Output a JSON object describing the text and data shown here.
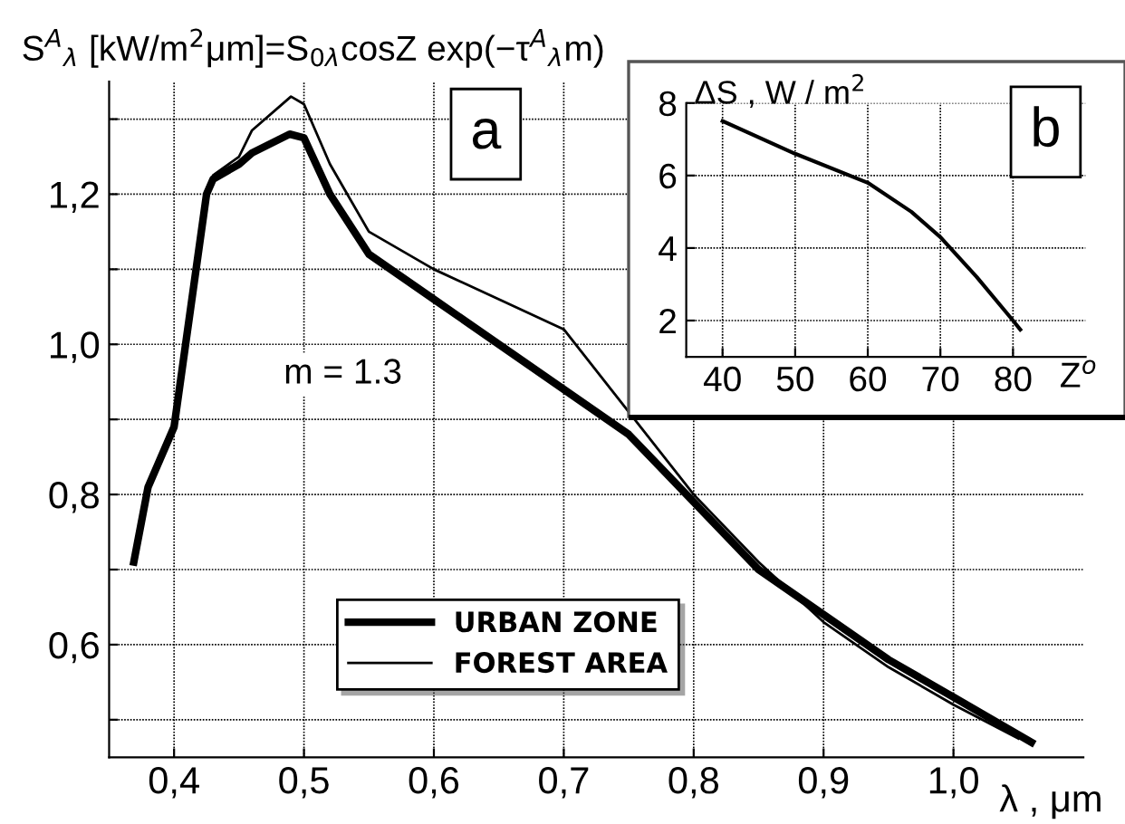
{
  "chart_data": [
    {
      "type": "line",
      "ylabel": "S$^{A}$$_{λ}$ [kW/m$^{2}$μm]=S$_{0λ}$cosZ exp(−τ$^{A}$$_{λ}$m)",
      "xlabel": "λ , μm",
      "annotations": [
        "a",
        "m = 1.3"
      ],
      "xlim": [
        0.35,
        1.1
      ],
      "ylim": [
        0.45,
        1.35
      ],
      "xticks": [
        {
          "value": 0.4,
          "label": "0,4"
        },
        {
          "value": 0.5,
          "label": "0,5"
        },
        {
          "value": 0.6,
          "label": "0,6"
        },
        {
          "value": 0.7,
          "label": "0,7"
        },
        {
          "value": 0.8,
          "label": "0,8"
        },
        {
          "value": 0.9,
          "label": "0,9"
        },
        {
          "value": 1.0,
          "label": "1,0"
        }
      ],
      "yticks": [
        {
          "value": 0.5,
          "label": null
        },
        {
          "value": 0.6,
          "label": "0,6"
        },
        {
          "value": 0.7,
          "label": null
        },
        {
          "value": 0.8,
          "label": "0,8"
        },
        {
          "value": 0.9,
          "label": null
        },
        {
          "value": 1.0,
          "label": "1,0"
        },
        {
          "value": 1.1,
          "label": null
        },
        {
          "value": 1.2,
          "label": "1,2"
        },
        {
          "value": 1.3,
          "label": null
        }
      ],
      "grid": true,
      "legend": "bottom left",
      "line_style": "solid",
      "marker": "none",
      "series": [
        {
          "name": "URBAN ZONE",
          "color": "#000000",
          "x": [
            0.369,
            0.38,
            0.4,
            0.425,
            0.43,
            0.45,
            0.46,
            0.489,
            0.5,
            0.52,
            0.55,
            0.6,
            0.65,
            0.7,
            0.75,
            0.8,
            0.85,
            0.9,
            0.95,
            1.0,
            1.06
          ],
          "values": [
            0.71,
            0.81,
            0.89,
            1.2,
            1.22,
            1.24,
            1.255,
            1.28,
            1.275,
            1.2,
            1.12,
            1.06,
            1.0,
            0.94,
            0.88,
            0.79,
            0.7,
            0.64,
            0.58,
            0.53,
            0.47
          ]
        },
        {
          "name": "FOREST AREA",
          "color": "#000000",
          "x": [
            0.4,
            0.425,
            0.43,
            0.45,
            0.46,
            0.49,
            0.5,
            0.52,
            0.55,
            0.6,
            0.65,
            0.7,
            0.75,
            0.8,
            0.85,
            0.9,
            0.95,
            1.0,
            1.05
          ],
          "values": [
            0.89,
            1.2,
            1.225,
            1.25,
            1.285,
            1.33,
            1.32,
            1.24,
            1.15,
            1.1,
            1.06,
            1.02,
            0.91,
            0.8,
            0.71,
            0.63,
            0.57,
            0.52,
            0.475
          ]
        }
      ]
    },
    {
      "type": "line",
      "ylabel": "ΔS , W / m$^{2}$",
      "xlabel": "Z$^{o}$",
      "annotations": [
        "b"
      ],
      "xlim": [
        35,
        90
      ],
      "ylim": [
        1,
        8
      ],
      "xticks": [
        40,
        50,
        60,
        70,
        80
      ],
      "yticks": [
        2,
        4,
        6,
        8
      ],
      "grid": true,
      "line_style": "solid",
      "marker": "none",
      "series": [
        {
          "color": "#000000",
          "x": [
            40,
            50,
            60,
            66,
            70,
            75,
            80,
            81
          ],
          "values": [
            7.5,
            6.6,
            5.8,
            5.0,
            4.3,
            3.2,
            2.0,
            1.75
          ]
        }
      ]
    }
  ]
}
